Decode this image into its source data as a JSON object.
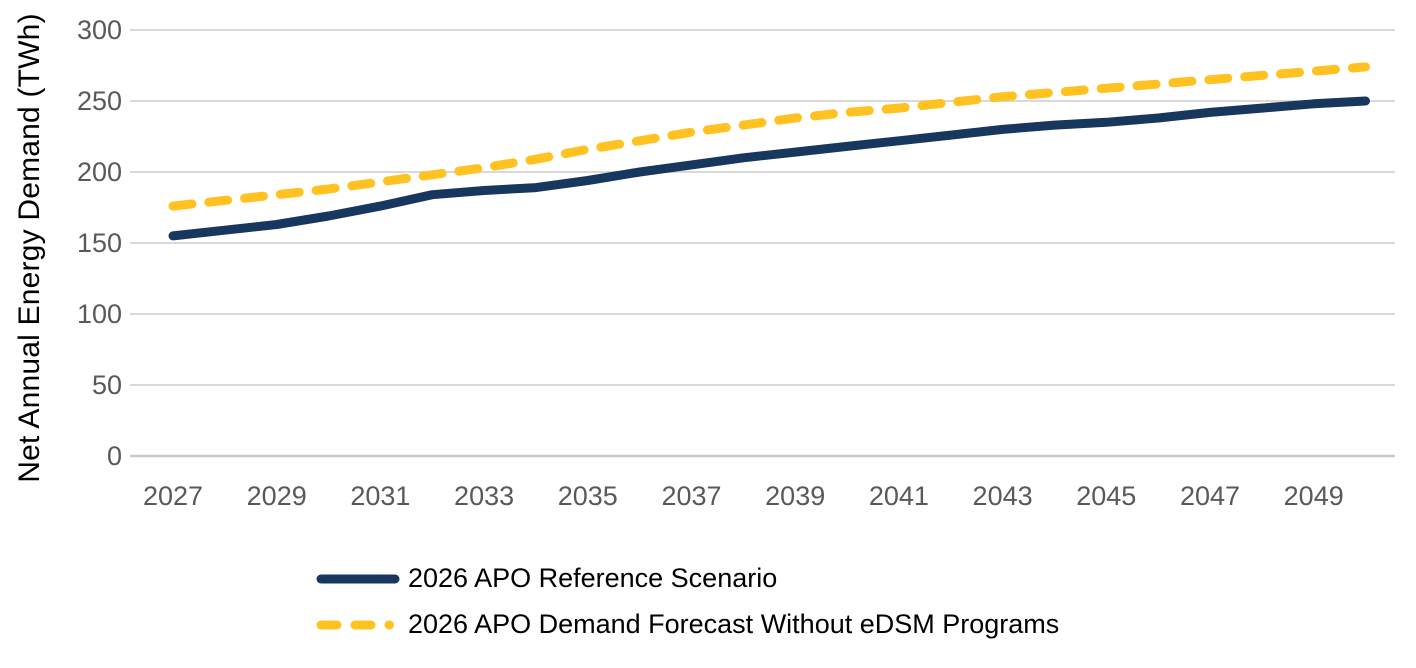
{
  "chart_data": {
    "type": "line",
    "title": "",
    "xlabel": "",
    "ylabel": "Net Annual Energy Demand (TWh)",
    "ylim": [
      0,
      300
    ],
    "yticks": [
      0,
      50,
      100,
      150,
      200,
      250,
      300
    ],
    "xticks": [
      2027,
      2029,
      2031,
      2033,
      2035,
      2037,
      2039,
      2041,
      2043,
      2045,
      2047,
      2049
    ],
    "x": [
      2027,
      2028,
      2029,
      2030,
      2031,
      2032,
      2033,
      2034,
      2035,
      2036,
      2037,
      2038,
      2039,
      2040,
      2041,
      2042,
      2043,
      2044,
      2045,
      2046,
      2047,
      2048,
      2049,
      2050
    ],
    "series": [
      {
        "name": "2026 APO Reference Scenario",
        "color": "#17375E",
        "line_style": "solid",
        "values": [
          155,
          159,
          163,
          169,
          176,
          184,
          187,
          189,
          194,
          200,
          205,
          210,
          214,
          218,
          222,
          226,
          230,
          233,
          235,
          238,
          242,
          245,
          248,
          250
        ]
      },
      {
        "name": "2026 APO Demand Forecast Without eDSM Programs",
        "color": "#FFC220",
        "line_style": "dashed",
        "values": [
          176,
          180,
          184,
          188,
          193,
          198,
          203,
          209,
          216,
          222,
          228,
          233,
          238,
          242,
          245,
          249,
          253,
          256,
          259,
          262,
          265,
          268,
          271,
          274
        ]
      }
    ],
    "grid": "horizontal",
    "legend_position": "bottom-left",
    "colors": {
      "gridline": "#D9D9D9",
      "axis_line": "#C9C9C9",
      "tick_label": "#595959",
      "axis_title": "#000000",
      "legend_text": "#000000",
      "background": "#FFFFFF"
    }
  }
}
